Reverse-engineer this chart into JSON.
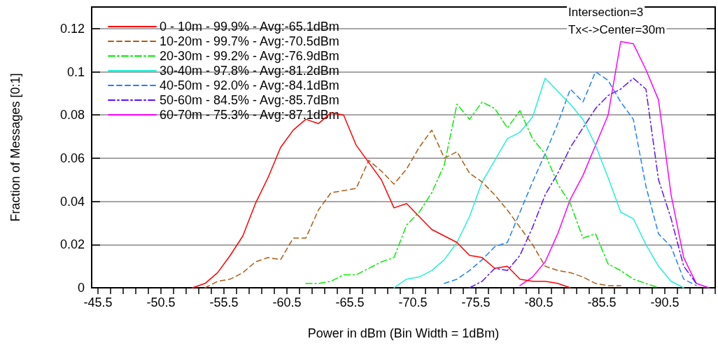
{
  "chart_data": {
    "type": "line",
    "xlabel": "Power in dBm (Bin Width = 1dBm)",
    "ylabel": "Fraction of Messages [0:1]",
    "annotations": [
      "Intersection=3",
      "Tx<->Center=30m"
    ],
    "xlim": [
      -45,
      -94.5
    ],
    "ylim": [
      0,
      0.13
    ],
    "xticks": [
      -45.5,
      {
        "value": -46.5,
        "label": null
      },
      {
        "value": -47.5,
        "label": null
      },
      {
        "value": -48.5,
        "label": null
      },
      {
        "value": -49.5,
        "label": null
      },
      -50.5,
      {
        "value": -51.5,
        "label": null
      },
      {
        "value": -52.5,
        "label": null
      },
      {
        "value": -53.5,
        "label": null
      },
      {
        "value": -54.5,
        "label": null
      },
      -55.5,
      {
        "value": -56.5,
        "label": null
      },
      {
        "value": -57.5,
        "label": null
      },
      {
        "value": -58.5,
        "label": null
      },
      {
        "value": -59.5,
        "label": null
      },
      -60.5,
      {
        "value": -61.5,
        "label": null
      },
      {
        "value": -62.5,
        "label": null
      },
      {
        "value": -63.5,
        "label": null
      },
      {
        "value": -64.5,
        "label": null
      },
      -65.5,
      {
        "value": -66.5,
        "label": null
      },
      {
        "value": -67.5,
        "label": null
      },
      {
        "value": -68.5,
        "label": null
      },
      {
        "value": -69.5,
        "label": null
      },
      -70.5,
      {
        "value": -71.5,
        "label": null
      },
      {
        "value": -72.5,
        "label": null
      },
      {
        "value": -73.5,
        "label": null
      },
      {
        "value": -74.5,
        "label": null
      },
      -75.5,
      {
        "value": -76.5,
        "label": null
      },
      {
        "value": -77.5,
        "label": null
      },
      {
        "value": -78.5,
        "label": null
      },
      {
        "value": -79.5,
        "label": null
      },
      -80.5,
      {
        "value": -81.5,
        "label": null
      },
      {
        "value": -82.5,
        "label": null
      },
      {
        "value": -83.5,
        "label": null
      },
      {
        "value": -84.5,
        "label": null
      },
      -85.5,
      {
        "value": -86.5,
        "label": null
      },
      {
        "value": -87.5,
        "label": null
      },
      {
        "value": -88.5,
        "label": null
      },
      {
        "value": -89.5,
        "label": null
      },
      -90.5,
      {
        "value": -91.5,
        "label": null
      },
      {
        "value": -92.5,
        "label": null
      },
      {
        "value": -93.5,
        "label": null
      },
      {
        "value": -94.5,
        "label": null
      }
    ],
    "yticks": [
      0,
      0.02,
      0.04,
      0.06,
      0.08,
      {
        "value": 0.1,
        "label": "0.1"
      },
      0.12
    ],
    "grid": "y",
    "legend": "top left",
    "marker": "none",
    "series": [
      {
        "name": "0 - 10m - 99.9% - Avg:-65.1dBm",
        "color": "#ff0000",
        "line_style": "solid",
        "x": [
          -53,
          -54,
          -55,
          -56,
          -57,
          -58,
          -59,
          -60,
          -61,
          -62,
          -63,
          -64,
          -65,
          -66,
          -67,
          -68,
          -69,
          -70,
          -71,
          -72,
          -73,
          -74,
          -75,
          -76,
          -77,
          -78,
          -79,
          -80,
          -81,
          -82,
          -83
        ],
        "values": [
          0,
          0.002,
          0.007,
          0.015,
          0.024,
          0.039,
          0.051,
          0.065,
          0.073,
          0.078,
          0.076,
          0.081,
          0.08,
          0.066,
          0.058,
          0.05,
          0.037,
          0.039,
          0.033,
          0.027,
          0.024,
          0.021,
          0.015,
          0.014,
          0.009,
          0.01,
          0.004,
          0.003,
          0.003,
          0.002,
          0
        ]
      },
      {
        "name": "10-20m - 99.7% - Avg:-70.5dBm",
        "color": "#b05a10",
        "line_style": "dashed",
        "x": [
          -54,
          -55,
          -56,
          -57,
          -58,
          -59,
          -60,
          -61,
          -62,
          -63,
          -64,
          -65,
          -66,
          -67,
          -68,
          -69,
          -70,
          -71,
          -72,
          -73,
          -74,
          -75,
          -76,
          -77,
          -78,
          -79,
          -80,
          -81,
          -82,
          -83,
          -84,
          -85,
          -86,
          -87
        ],
        "values": [
          0,
          0.003,
          0.004,
          0.007,
          0.012,
          0.014,
          0.013,
          0.023,
          0.023,
          0.036,
          0.044,
          0.045,
          0.046,
          0.059,
          0.054,
          0.048,
          0.055,
          0.065,
          0.073,
          0.06,
          0.063,
          0.053,
          0.049,
          0.043,
          0.036,
          0.028,
          0.02,
          0.01,
          0.008,
          0.007,
          0.005,
          0.002,
          0.001,
          0.001
        ]
      },
      {
        "name": "20-30m - 99.2% - Avg:-76.9dBm",
        "color": "#00ee00",
        "line_style": "dashdot",
        "x": [
          -62,
          -63,
          -64,
          -65,
          -66,
          -67,
          -68,
          -69,
          -70,
          -71,
          -72,
          -73,
          -74,
          -75,
          -76,
          -77,
          -78,
          -79,
          -80,
          -81,
          -82,
          -83,
          -84,
          -85,
          -86,
          -87,
          -88,
          -89,
          -90
        ],
        "values": [
          0.002,
          0.002,
          0.003,
          0.006,
          0.006,
          0.009,
          0.012,
          0.014,
          0.029,
          0.035,
          0.044,
          0.057,
          0.085,
          0.078,
          0.086,
          0.083,
          0.074,
          0.082,
          0.069,
          0.062,
          0.048,
          0.039,
          0.023,
          0.025,
          0.011,
          0.008,
          0.004,
          0.002,
          0
        ]
      },
      {
        "name": "30-40m - 97.8% - Avg:-81.2dBm",
        "color": "#22f0d8",
        "line_style": "solid",
        "x": [
          -69,
          -70,
          -71,
          -72,
          -73,
          -74,
          -75,
          -76,
          -77,
          -78,
          -79,
          -80,
          -81,
          -82,
          -83,
          -84,
          -85,
          -86,
          -87,
          -88,
          -89,
          -90,
          -91,
          -92
        ],
        "values": [
          0,
          0.004,
          0.005,
          0.008,
          0.013,
          0.021,
          0.033,
          0.049,
          0.059,
          0.069,
          0.072,
          0.079,
          0.097,
          0.091,
          0.085,
          0.078,
          0.066,
          0.051,
          0.035,
          0.032,
          0.02,
          0.01,
          0.003,
          0
        ]
      },
      {
        "name": "40-50m - 92.0% - Avg:-84.1dBm",
        "color": "#1e80ff",
        "line_style": "dashed",
        "x": [
          -73,
          -74,
          -75,
          -76,
          -77,
          -78,
          -79,
          -80,
          -81,
          -82,
          -83,
          -84,
          -85,
          -86,
          -87,
          -88,
          -89,
          -90,
          -91,
          -92,
          -93
        ],
        "values": [
          0.002,
          0.004,
          0.008,
          0.013,
          0.019,
          0.021,
          0.035,
          0.049,
          0.062,
          0.076,
          0.092,
          0.086,
          0.1,
          0.096,
          0.086,
          0.078,
          0.047,
          0.025,
          0.019,
          0.004,
          0.001
        ]
      },
      {
        "name": "50-60m - 84.5% - Avg:-85.7dBm",
        "color": "#5a10ff",
        "line_style": "dashdot",
        "x": [
          -75,
          -76,
          -77,
          -78,
          -79,
          -80,
          -81,
          -82,
          -83,
          -84,
          -85,
          -86,
          -87,
          -88,
          -89,
          -90,
          -91,
          -92,
          -93
        ],
        "values": [
          0,
          0.003,
          0.009,
          0.008,
          0.015,
          0.028,
          0.043,
          0.053,
          0.065,
          0.074,
          0.083,
          0.089,
          0.092,
          0.097,
          0.092,
          0.05,
          0.032,
          0.01,
          0.002
        ]
      },
      {
        "name": "60-70m - 75.3% - Avg:-87.1dBm",
        "color": "#ff00ff",
        "line_style": "solid",
        "x": [
          -79,
          -80,
          -81,
          -82,
          -83,
          -84,
          -85,
          -86,
          -87,
          -88,
          -89,
          -90,
          -91,
          -92,
          -93,
          -94
        ],
        "values": [
          0.001,
          0.005,
          0.012,
          0.025,
          0.041,
          0.052,
          0.066,
          0.08,
          0.114,
          0.113,
          0.101,
          0.087,
          0.043,
          0.014,
          0.002,
          0
        ]
      }
    ]
  }
}
